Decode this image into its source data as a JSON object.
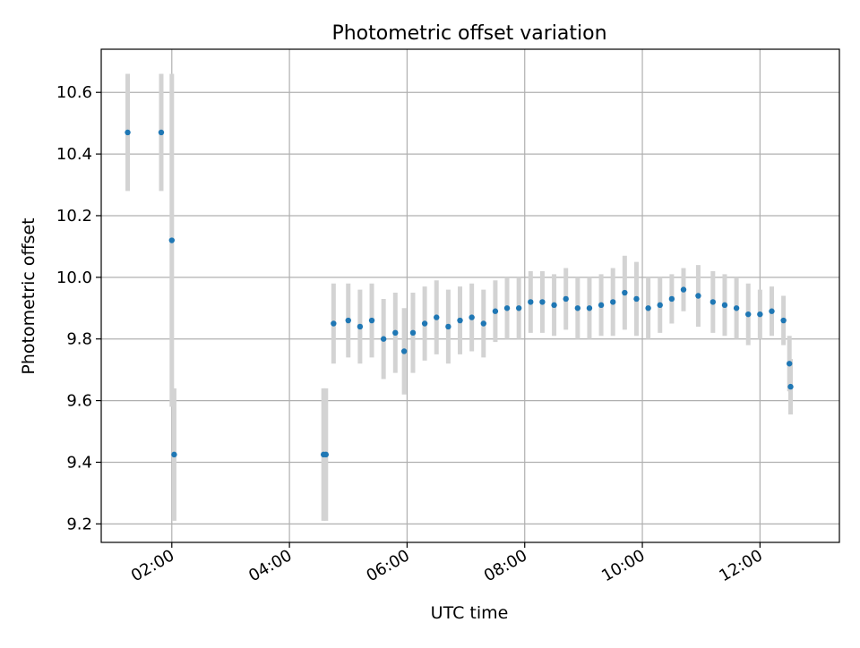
{
  "chart_data": {
    "type": "scatter",
    "title": "Photometric offset variation",
    "xlabel": "UTC time",
    "ylabel": "Photometric offset",
    "x_unit": "hours UTC",
    "xlim": [
      0.8,
      13.35
    ],
    "ylim": [
      9.14,
      10.74
    ],
    "xticks": [
      2,
      4,
      6,
      8,
      10,
      12
    ],
    "xtick_labels": [
      "02:00",
      "04:00",
      "06:00",
      "08:00",
      "10:00",
      "12:00"
    ],
    "yticks": [
      9.2,
      9.4,
      9.6,
      9.8,
      10.0,
      10.2,
      10.4,
      10.6
    ],
    "ytick_labels": [
      "9.2",
      "9.4",
      "9.6",
      "9.8",
      "10.0",
      "10.2",
      "10.4",
      "10.6"
    ],
    "grid": true,
    "colors": {
      "point": "#1f77b4",
      "error_bar": "#d3d3d3",
      "grid": "#b0b0b0",
      "axes": "#000000"
    },
    "series": [
      {
        "x": [
          1.25,
          1.82,
          2.0,
          2.04,
          4.58,
          4.62,
          4.75,
          5.0,
          5.2,
          5.4,
          5.6,
          5.8,
          5.95,
          6.1,
          6.3,
          6.5,
          6.7,
          6.9,
          7.1,
          7.3,
          7.5,
          7.7,
          7.9,
          8.1,
          8.3,
          8.5,
          8.7,
          8.9,
          9.1,
          9.3,
          9.5,
          9.7,
          9.9,
          10.1,
          10.3,
          10.5,
          10.7,
          10.95,
          11.2,
          11.4,
          11.6,
          11.8,
          12.0,
          12.2,
          12.4,
          12.5,
          12.52
        ],
        "y": [
          10.47,
          10.47,
          10.12,
          9.425,
          9.425,
          9.425,
          9.85,
          9.86,
          9.84,
          9.86,
          9.8,
          9.82,
          9.76,
          9.82,
          9.85,
          9.87,
          9.84,
          9.86,
          9.87,
          9.85,
          9.89,
          9.9,
          9.9,
          9.92,
          9.92,
          9.91,
          9.93,
          9.9,
          9.9,
          9.91,
          9.92,
          9.95,
          9.93,
          9.9,
          9.91,
          9.93,
          9.96,
          9.94,
          9.92,
          9.91,
          9.9,
          9.88,
          9.88,
          9.89,
          9.86,
          9.72,
          9.645
        ],
        "yerr": [
          0.19,
          0.19,
          0.54,
          0.215,
          0.215,
          0.215,
          0.13,
          0.12,
          0.12,
          0.12,
          0.13,
          0.13,
          0.14,
          0.13,
          0.12,
          0.12,
          0.12,
          0.11,
          0.11,
          0.11,
          0.1,
          0.1,
          0.1,
          0.1,
          0.1,
          0.1,
          0.1,
          0.1,
          0.1,
          0.1,
          0.11,
          0.12,
          0.12,
          0.1,
          0.09,
          0.08,
          0.07,
          0.1,
          0.1,
          0.1,
          0.1,
          0.1,
          0.08,
          0.08,
          0.08,
          0.09,
          0.09
        ]
      }
    ]
  }
}
